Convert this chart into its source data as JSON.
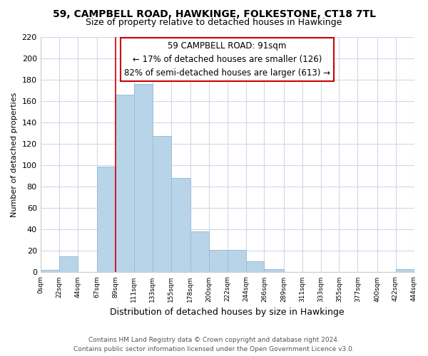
{
  "title": "59, CAMPBELL ROAD, HAWKINGE, FOLKESTONE, CT18 7TL",
  "subtitle": "Size of property relative to detached houses in Hawkinge",
  "xlabel": "Distribution of detached houses by size in Hawkinge",
  "ylabel": "Number of detached properties",
  "bar_color": "#b8d4e8",
  "bar_edge_color": "#a0bcd4",
  "bin_edges": [
    0,
    22,
    44,
    67,
    89,
    111,
    133,
    155,
    178,
    200,
    222,
    244,
    266,
    289,
    311,
    333,
    355,
    377,
    400,
    422,
    444
  ],
  "bin_labels": [
    "0sqm",
    "22sqm",
    "44sqm",
    "67sqm",
    "89sqm",
    "111sqm",
    "133sqm",
    "155sqm",
    "178sqm",
    "200sqm",
    "222sqm",
    "244sqm",
    "266sqm",
    "289sqm",
    "311sqm",
    "333sqm",
    "355sqm",
    "377sqm",
    "400sqm",
    "422sqm",
    "444sqm"
  ],
  "bar_heights": [
    2,
    15,
    0,
    99,
    166,
    176,
    127,
    88,
    38,
    21,
    21,
    10,
    3,
    0,
    0,
    0,
    0,
    0,
    0,
    3
  ],
  "ylim": [
    0,
    220
  ],
  "yticks": [
    0,
    20,
    40,
    60,
    80,
    100,
    120,
    140,
    160,
    180,
    200,
    220
  ],
  "property_line_x": 89,
  "annotation_line1": "59 CAMPBELL ROAD: 91sqm",
  "annotation_line2": "← 17% of detached houses are smaller (126)",
  "annotation_line3": "82% of semi-detached houses are larger (613) →",
  "footer_line1": "Contains HM Land Registry data © Crown copyright and database right 2024.",
  "footer_line2": "Contains public sector information licensed under the Open Government Licence v3.0.",
  "background_color": "#ffffff",
  "grid_color": "#d0d8e8",
  "annotation_border_color": "#cc0000",
  "property_line_color": "#cc0000"
}
